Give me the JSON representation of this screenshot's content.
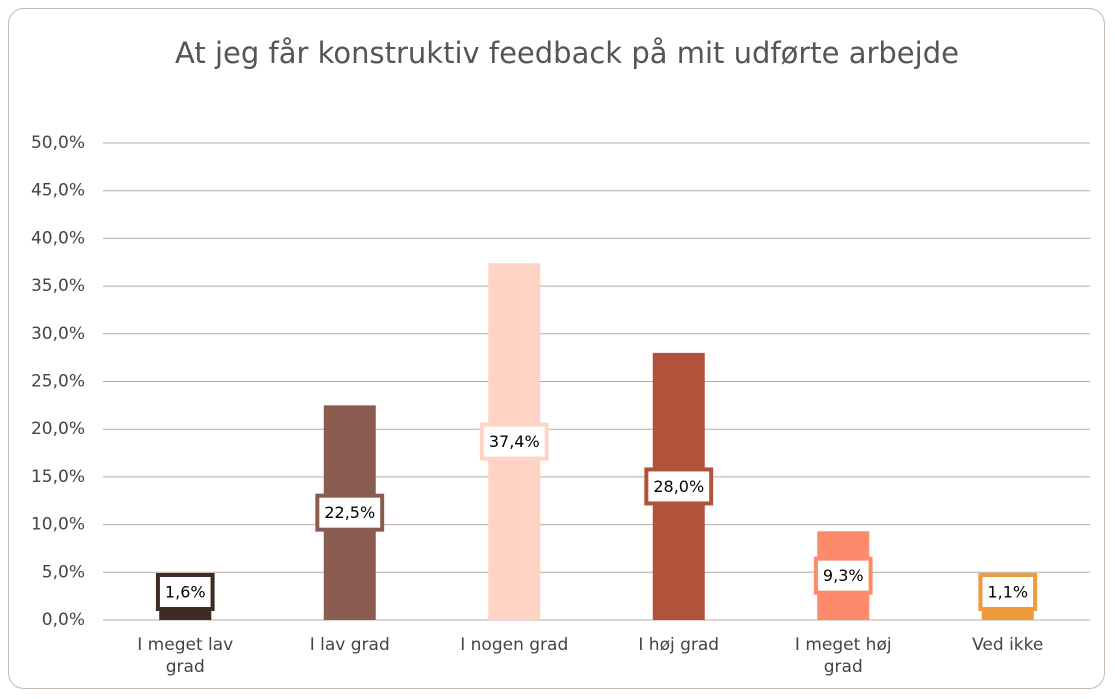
{
  "chart_data": {
    "type": "bar",
    "title": "At jeg får konstruktiv feedback på mit udførte arbejde",
    "categories": [
      "I meget lav grad",
      "I lav grad",
      "I nogen grad",
      "I høj grad",
      "I meget høj grad",
      "Ved ikke"
    ],
    "values": [
      1.6,
      22.5,
      37.4,
      28.0,
      9.3,
      1.1
    ],
    "value_labels": [
      "1,6%",
      "22,5%",
      "37,4%",
      "28,0%",
      "9,3%",
      "1,1%"
    ],
    "colors": [
      "#3f2a24",
      "#8a5c50",
      "#ffd4c5",
      "#b0533a",
      "#fd8a6a",
      "#f09a3e"
    ],
    "ylim": [
      0,
      50
    ],
    "yticks": [
      {
        "value": 0,
        "label": "0,0%"
      },
      {
        "value": 5,
        "label": "5,0%"
      },
      {
        "value": 10,
        "label": "10,0%"
      },
      {
        "value": 15,
        "label": "15,0%"
      },
      {
        "value": 20,
        "label": "20,0%"
      },
      {
        "value": 25,
        "label": "25,0%"
      },
      {
        "value": 30,
        "label": "30,0%"
      },
      {
        "value": 35,
        "label": "35,0%"
      },
      {
        "value": 40,
        "label": "40,0%"
      },
      {
        "value": 45,
        "label": "45,0%"
      },
      {
        "value": 50,
        "label": "50,0%"
      }
    ],
    "grid": true
  }
}
